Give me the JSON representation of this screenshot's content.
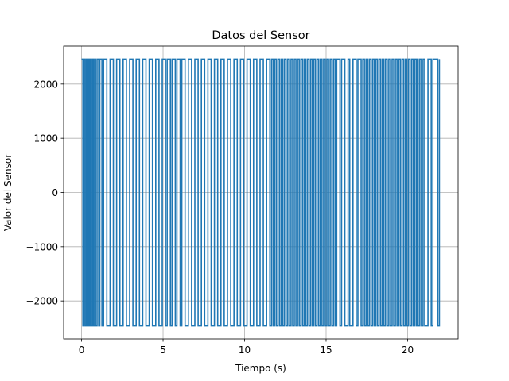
{
  "chart_data": {
    "type": "line",
    "title": "Datos del Sensor",
    "xlabel": "Tiempo (s)",
    "ylabel": "Valor del Sensor",
    "xlim": [
      -1.1,
      23.1
    ],
    "ylim": [
      -2700,
      2700
    ],
    "xticks": [
      0,
      5,
      10,
      15,
      20
    ],
    "xtick_labels": [
      "0",
      "5",
      "10",
      "15",
      "20"
    ],
    "yticks": [
      -2000,
      -1000,
      0,
      1000,
      2000
    ],
    "ytick_labels": [
      "−2000",
      "−1000",
      "0",
      "1000",
      "2000"
    ],
    "grid": true,
    "legend": "none",
    "series": [
      {
        "color": "#1f77b4",
        "high": 2460,
        "low": -2460,
        "x": [
          0.0,
          0.08,
          0.14,
          0.22,
          0.3,
          0.36,
          0.42,
          0.48,
          0.52,
          0.58,
          0.66,
          0.72,
          0.8,
          0.86,
          0.95,
          1.05,
          1.12,
          1.25,
          1.35,
          1.55,
          1.75,
          1.95,
          2.15,
          2.35,
          2.55,
          2.75,
          2.95,
          3.15,
          3.35,
          3.55,
          3.75,
          3.95,
          4.15,
          4.35,
          4.55,
          4.75,
          4.95,
          5.15,
          5.25,
          5.45,
          5.55,
          5.75,
          5.85,
          6.05,
          6.15,
          6.35,
          6.55,
          6.75,
          6.95,
          7.15,
          7.35,
          7.55,
          7.75,
          7.95,
          8.15,
          8.35,
          8.55,
          8.75,
          8.95,
          9.15,
          9.35,
          9.55,
          9.75,
          9.95,
          10.15,
          10.35,
          10.55,
          10.75,
          10.95,
          11.15,
          11.35,
          11.55,
          11.65,
          11.75,
          11.85,
          11.95,
          12.05,
          12.15,
          12.25,
          12.35,
          12.45,
          12.55,
          12.65,
          12.75,
          12.85,
          12.95,
          13.05,
          13.15,
          13.25,
          13.35,
          13.45,
          13.55,
          13.65,
          13.75,
          13.85,
          13.95,
          14.05,
          14.15,
          14.25,
          14.35,
          14.45,
          14.55,
          14.65,
          14.75,
          14.85,
          14.95,
          15.05,
          15.15,
          15.25,
          15.35,
          15.45,
          15.55,
          15.65,
          15.85,
          15.95,
          16.15,
          16.35,
          16.45,
          16.65,
          16.85,
          16.95,
          17.15,
          17.25,
          17.35,
          17.45,
          17.55,
          17.65,
          17.75,
          17.85,
          17.95,
          18.05,
          18.15,
          18.25,
          18.35,
          18.45,
          18.55,
          18.65,
          18.75,
          18.85,
          18.95,
          19.05,
          19.15,
          19.25,
          19.35,
          19.45,
          19.55,
          19.65,
          19.75,
          19.85,
          19.95,
          20.05,
          20.15,
          20.25,
          20.35,
          20.45,
          20.55,
          20.6,
          20.65,
          20.75,
          20.85,
          20.95,
          21.05,
          21.25,
          21.45,
          21.55,
          21.85,
          21.95
        ],
        "y_start": 2460
      }
    ]
  }
}
